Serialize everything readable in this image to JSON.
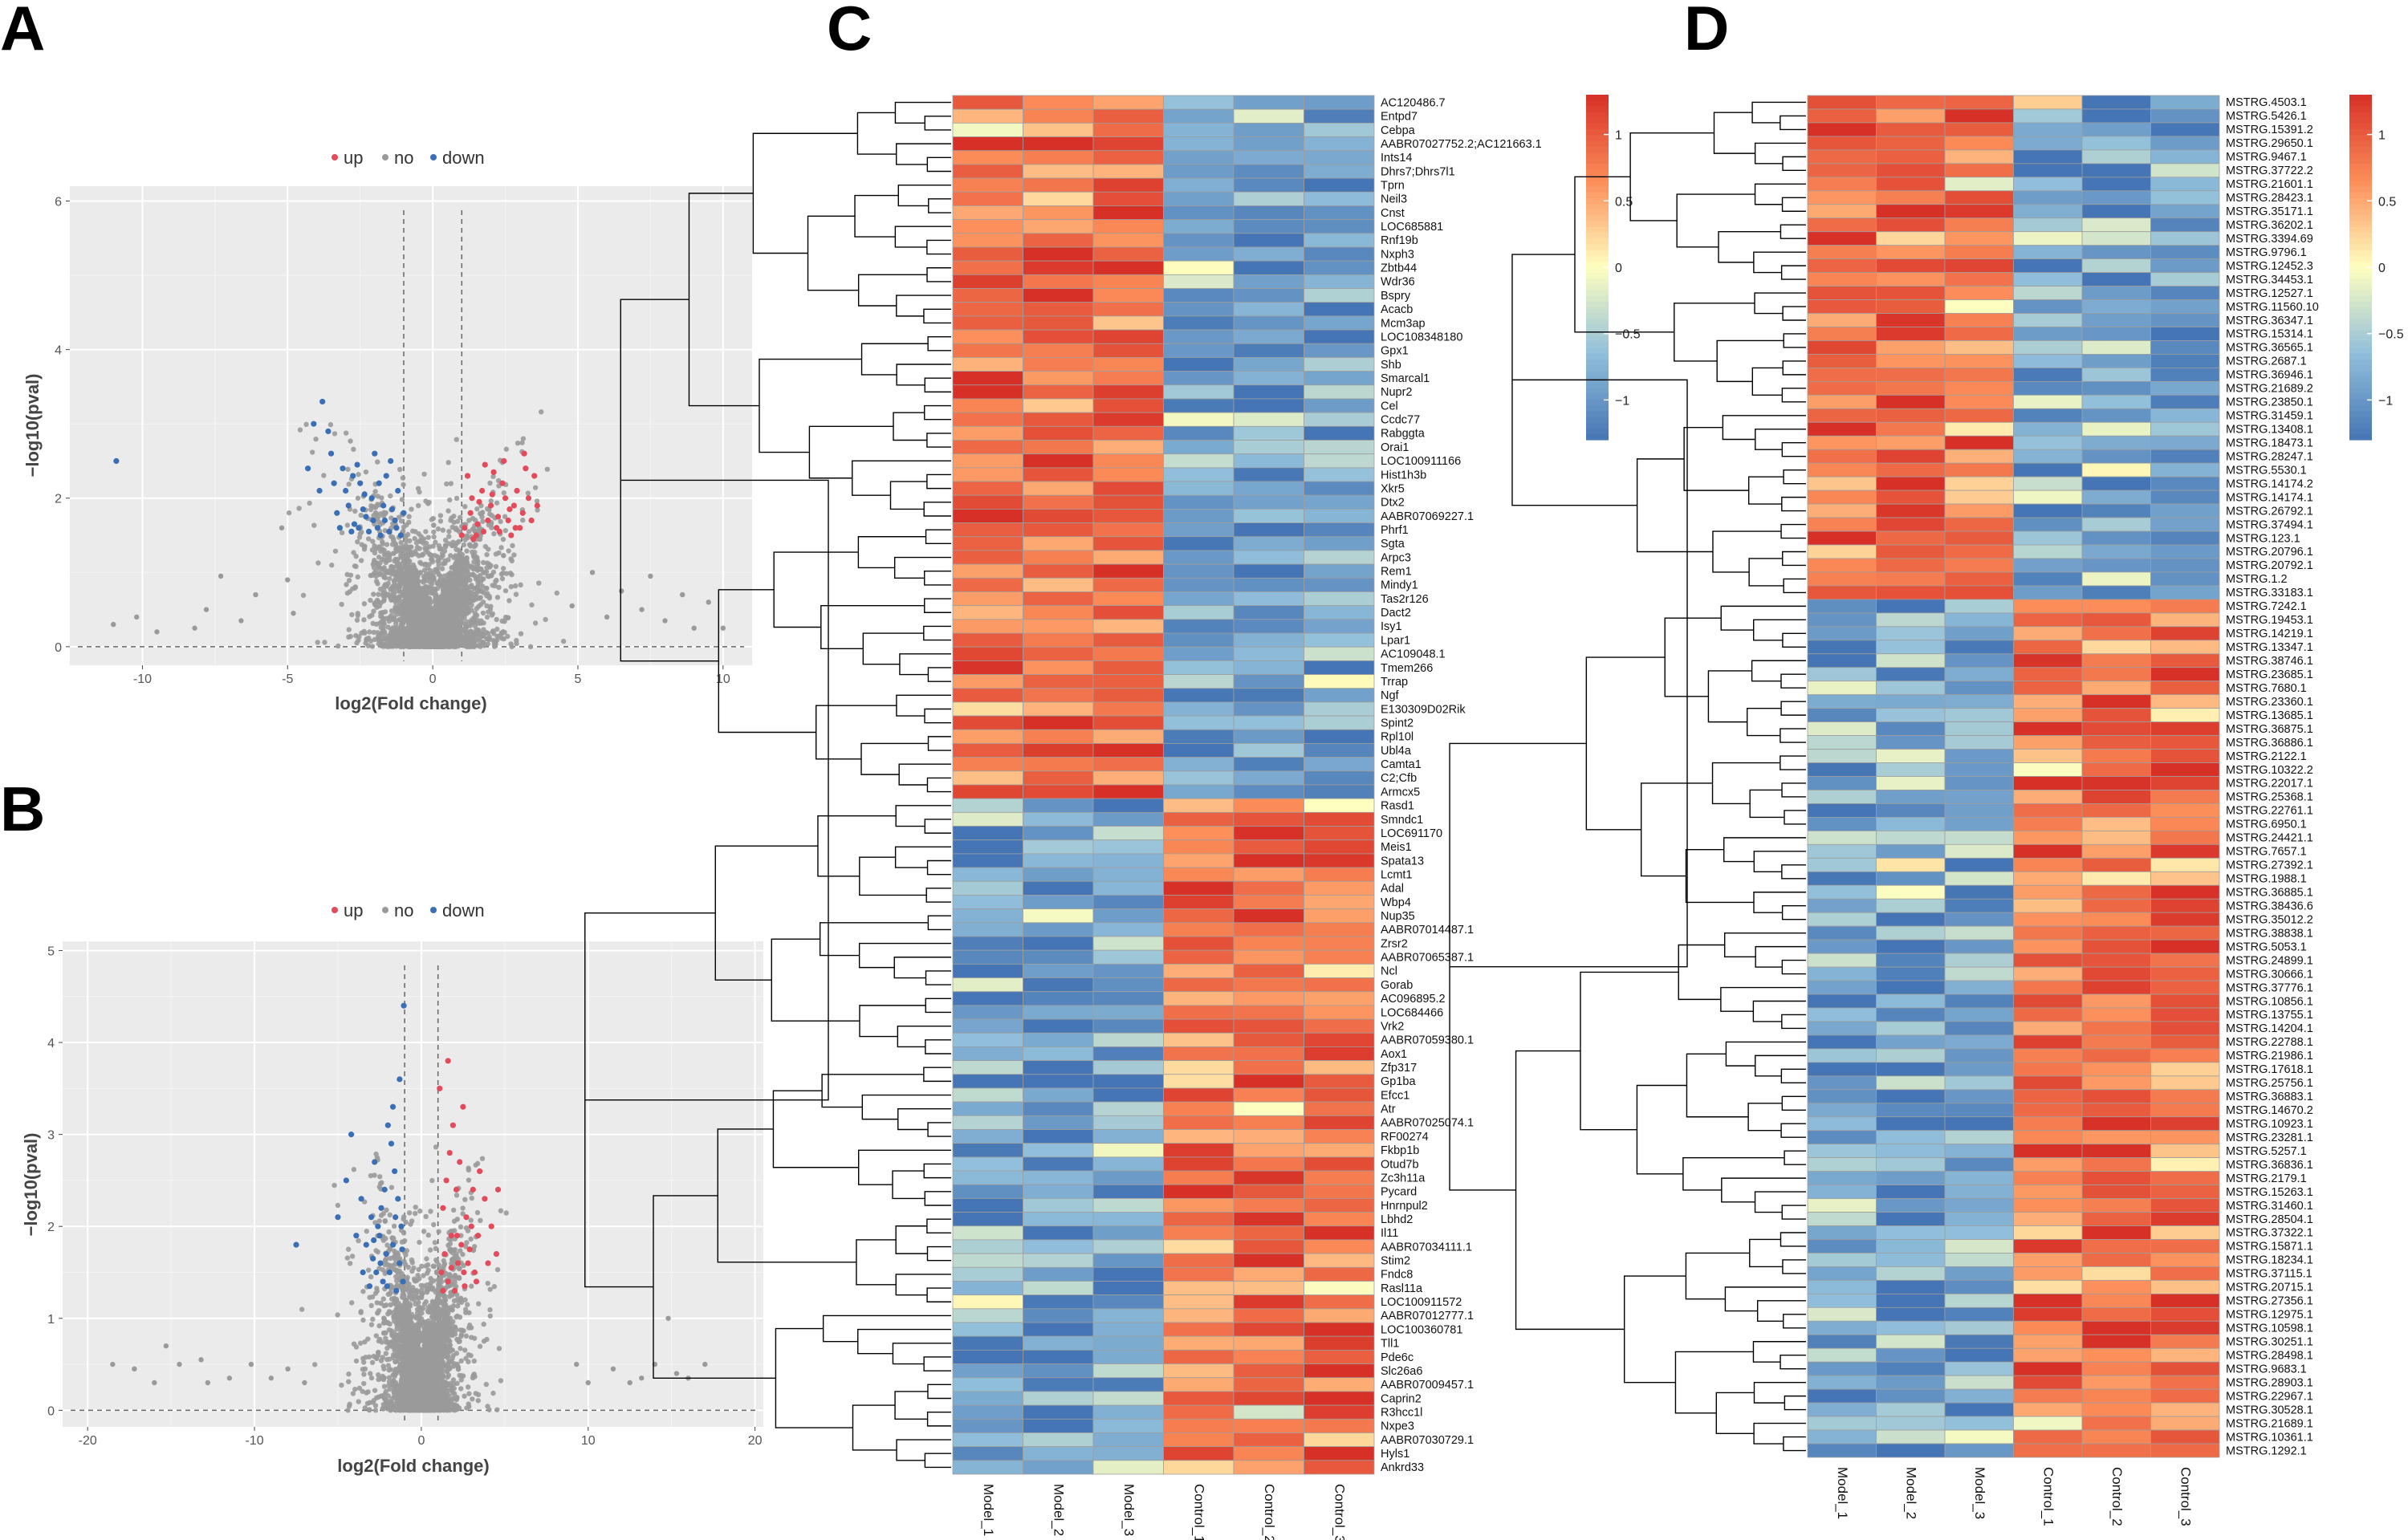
{
  "panels": {
    "A": {
      "letter": "A",
      "legend": [
        "up",
        "no",
        "down"
      ],
      "x_label": "log2(Fold change)",
      "y_label": "−log10(pval)",
      "x_ticks": [
        "-10",
        "-5",
        "0",
        "5",
        "10"
      ],
      "y_ticks": [
        "0",
        "2",
        "4",
        "6"
      ]
    },
    "B": {
      "letter": "B",
      "legend": [
        "up",
        "no",
        "down"
      ],
      "x_label": "log2(Fold change)",
      "y_label": "−log10(pval)",
      "x_ticks": [
        "-20",
        "-10",
        "0",
        "10",
        "20"
      ],
      "y_ticks": [
        "0",
        "1",
        "2",
        "3",
        "4",
        "5"
      ]
    },
    "C": {
      "letter": "C"
    },
    "D": {
      "letter": "D"
    }
  },
  "colors": {
    "up": "#e34a5a",
    "down": "#3a6fb5",
    "no": "#9a9a9a",
    "panel_bg": "#ebebeb",
    "grid": "#ffffff"
  },
  "chart_data": [
    {
      "id": "A",
      "type": "scatter",
      "title": "",
      "xlabel": "log2(Fold change)",
      "ylabel": "−log10(pval)",
      "xlim": [
        -12.5,
        11
      ],
      "ylim": [
        -0.25,
        6.2
      ],
      "thresholds": {
        "fc": [
          -1,
          1
        ],
        "p": 0
      },
      "legend": [
        "up",
        "no",
        "down"
      ],
      "up": [
        [
          1.1,
          1.6
        ],
        [
          1.3,
          1.8
        ],
        [
          1.5,
          1.5
        ],
        [
          1.7,
          2.1
        ],
        [
          1.9,
          1.7
        ],
        [
          2.0,
          1.9
        ],
        [
          2.2,
          1.6
        ],
        [
          2.4,
          2.2
        ],
        [
          2.6,
          1.7
        ],
        [
          2.8,
          1.9
        ],
        [
          3.0,
          1.6
        ],
        [
          3.2,
          2.4
        ],
        [
          1.2,
          2.3
        ],
        [
          1.4,
          1.45
        ],
        [
          1.6,
          1.95
        ],
        [
          1.8,
          2.45
        ],
        [
          2.1,
          2.35
        ],
        [
          2.3,
          1.55
        ],
        [
          2.5,
          2.0
        ],
        [
          2.7,
          1.5
        ],
        [
          2.9,
          2.1
        ],
        [
          3.1,
          1.8
        ],
        [
          3.4,
          1.7
        ],
        [
          3.6,
          1.9
        ],
        [
          1.0,
          1.5
        ],
        [
          1.35,
          2.0
        ],
        [
          1.55,
          1.65
        ],
        [
          1.75,
          1.55
        ],
        [
          2.05,
          2.05
        ],
        [
          2.25,
          1.75
        ],
        [
          2.45,
          2.5
        ],
        [
          2.65,
          1.85
        ],
        [
          3.3,
          2.0
        ],
        [
          3.5,
          2.3
        ],
        [
          3.15,
          2.6
        ],
        [
          2.85,
          1.6
        ]
      ],
      "down": [
        [
          -1.1,
          1.5
        ],
        [
          -1.3,
          1.7
        ],
        [
          -1.5,
          1.55
        ],
        [
          -1.7,
          1.9
        ],
        [
          -1.9,
          1.6
        ],
        [
          -2.1,
          2.0
        ],
        [
          -2.3,
          1.75
        ],
        [
          -2.5,
          2.2
        ],
        [
          -2.7,
          1.65
        ],
        [
          -2.9,
          1.9
        ],
        [
          -3.1,
          2.4
        ],
        [
          -3.3,
          1.8
        ],
        [
          -3.5,
          2.6
        ],
        [
          -3.8,
          3.3
        ],
        [
          -1.2,
          2.1
        ],
        [
          -1.4,
          1.85
        ],
        [
          -1.6,
          2.3
        ],
        [
          -1.8,
          1.5
        ],
        [
          -2.0,
          2.6
        ],
        [
          -2.2,
          1.55
        ],
        [
          -2.4,
          1.85
        ],
        [
          -2.6,
          2.45
        ],
        [
          -2.8,
          1.55
        ],
        [
          -3.0,
          2.1
        ],
        [
          -3.2,
          1.6
        ],
        [
          -3.4,
          2.2
        ],
        [
          -3.6,
          2.9
        ],
        [
          -1.0,
          1.8
        ],
        [
          -1.25,
          1.6
        ],
        [
          -1.45,
          2.5
        ],
        [
          -1.65,
          1.7
        ],
        [
          -1.85,
          2.2
        ],
        [
          -2.05,
          1.7
        ],
        [
          -2.35,
          2.05
        ],
        [
          -2.55,
          1.6
        ],
        [
          -2.75,
          2.3
        ],
        [
          -4.3,
          2.4
        ],
        [
          -4.1,
          3.0
        ],
        [
          -3.9,
          2.1
        ],
        [
          -10.9,
          2.5
        ]
      ],
      "no_outliers": [
        [
          -7.3,
          0.95
        ],
        [
          -8.2,
          0.25
        ],
        [
          -6.1,
          0.7
        ],
        [
          -5.2,
          1.6
        ],
        [
          -5.0,
          0.9
        ],
        [
          -6.6,
          0.35
        ],
        [
          -7.8,
          0.5
        ],
        [
          -9.5,
          0.2
        ],
        [
          -10.2,
          0.4
        ],
        [
          -11.0,
          0.3
        ],
        [
          5.5,
          1.0
        ],
        [
          6.5,
          0.75
        ],
        [
          7.2,
          0.5
        ],
        [
          8.0,
          0.35
        ],
        [
          9.0,
          0.25
        ],
        [
          9.5,
          0.6
        ],
        [
          10.0,
          0.25
        ],
        [
          7.5,
          0.95
        ],
        [
          6.0,
          0.4
        ],
        [
          8.6,
          0.7
        ],
        [
          -4.8,
          0.45
        ],
        [
          4.8,
          0.55
        ]
      ]
    },
    {
      "id": "B",
      "type": "scatter",
      "title": "",
      "xlabel": "log2(Fold change)",
      "ylabel": "−log10(pval)",
      "xlim": [
        -21.5,
        20.5
      ],
      "ylim": [
        -0.18,
        5.1
      ],
      "thresholds": {
        "fc": [
          -1,
          1
        ],
        "p": 0
      },
      "legend": [
        "up",
        "no",
        "down"
      ],
      "up": [
        [
          1.2,
          1.5
        ],
        [
          1.4,
          1.7
        ],
        [
          1.6,
          1.4
        ],
        [
          1.8,
          1.9
        ],
        [
          2.0,
          1.3
        ],
        [
          2.2,
          1.6
        ],
        [
          2.4,
          1.8
        ],
        [
          2.6,
          1.35
        ],
        [
          2.8,
          1.6
        ],
        [
          3.0,
          2.0
        ],
        [
          3.2,
          1.5
        ],
        [
          3.4,
          1.9
        ],
        [
          1.3,
          2.2
        ],
        [
          1.5,
          2.5
        ],
        [
          1.7,
          2.8
        ],
        [
          1.9,
          3.1
        ],
        [
          2.1,
          2.4
        ],
        [
          2.3,
          2.7
        ],
        [
          2.5,
          3.3
        ],
        [
          2.7,
          2.1
        ],
        [
          3.1,
          2.4
        ],
        [
          3.5,
          2.6
        ],
        [
          3.8,
          2.3
        ],
        [
          4.2,
          2.0
        ],
        [
          4.5,
          1.7
        ],
        [
          4.6,
          2.4
        ],
        [
          1.1,
          3.5
        ],
        [
          1.6,
          3.8
        ],
        [
          1.3,
          1.3
        ],
        [
          1.8,
          1.55
        ],
        [
          2.15,
          1.9
        ],
        [
          2.55,
          1.5
        ],
        [
          2.9,
          1.75
        ],
        [
          3.3,
          1.4
        ],
        [
          4.0,
          1.6
        ]
      ],
      "down": [
        [
          -1.1,
          1.4
        ],
        [
          -1.3,
          1.6
        ],
        [
          -1.5,
          1.3
        ],
        [
          -1.7,
          1.8
        ],
        [
          -1.9,
          1.5
        ],
        [
          -2.1,
          1.7
        ],
        [
          -2.3,
          1.4
        ],
        [
          -2.5,
          1.9
        ],
        [
          -2.7,
          1.5
        ],
        [
          -2.9,
          1.65
        ],
        [
          -3.1,
          1.35
        ],
        [
          -1.2,
          2.0
        ],
        [
          -1.4,
          2.3
        ],
        [
          -1.6,
          2.6
        ],
        [
          -1.8,
          2.9
        ],
        [
          -2.0,
          3.1
        ],
        [
          -2.2,
          2.4
        ],
        [
          -2.4,
          2.2
        ],
        [
          -2.6,
          2.0
        ],
        [
          -2.8,
          2.7
        ],
        [
          -3.0,
          2.1
        ],
        [
          -3.3,
          1.8
        ],
        [
          -3.6,
          2.3
        ],
        [
          -3.9,
          1.9
        ],
        [
          -4.2,
          3.0
        ],
        [
          -4.5,
          2.5
        ],
        [
          -5.0,
          2.1
        ],
        [
          -7.5,
          1.8
        ],
        [
          -1.05,
          4.4
        ],
        [
          -1.3,
          3.6
        ],
        [
          -1.7,
          3.3
        ],
        [
          -1.15,
          1.75
        ],
        [
          -1.55,
          2.1
        ],
        [
          -2.05,
          1.35
        ],
        [
          -2.45,
          1.6
        ],
        [
          -2.85,
          1.85
        ],
        [
          -3.5,
          1.5
        ]
      ],
      "no_outliers": [
        [
          -18.5,
          0.5
        ],
        [
          -17.2,
          0.45
        ],
        [
          -15.3,
          0.7
        ],
        [
          -13.2,
          0.55
        ],
        [
          -12.8,
          0.3
        ],
        [
          -11.5,
          0.35
        ],
        [
          -10.2,
          0.5
        ],
        [
          -9.0,
          0.35
        ],
        [
          -8.0,
          0.45
        ],
        [
          -7.0,
          0.3
        ],
        [
          9.3,
          0.5
        ],
        [
          10.0,
          0.3
        ],
        [
          11.5,
          0.45
        ],
        [
          13.2,
          0.35
        ],
        [
          14.0,
          0.5
        ],
        [
          15.3,
          0.4
        ],
        [
          16.0,
          0.35
        ],
        [
          17.0,
          0.5
        ],
        [
          14.8,
          1.0
        ],
        [
          -14.5,
          0.5
        ],
        [
          -16.0,
          0.3
        ],
        [
          12.5,
          0.3
        ]
      ]
    },
    {
      "id": "C",
      "type": "heatmap",
      "title": "",
      "samples": [
        "Model_1",
        "Model_2",
        "Model_3",
        "Control_1",
        "Control_2",
        "Control_3"
      ],
      "split_index": 51,
      "genes": [
        "AC120486.7",
        "Entpd7",
        "Cebpa",
        "AABR07027752.2;AC121663.1",
        "Ints14",
        "Dhrs7;Dhrs7l1",
        "Tprn",
        "Neil3",
        "Cnst",
        "LOC685881",
        "Rnf19b",
        "Nxph3",
        "Zbtb44",
        "Wdr36",
        "Bspry",
        "Acacb",
        "Mcm3ap",
        "LOC108348180",
        "Gpx1",
        "Shb",
        "Smarcal1",
        "Nupr2",
        "Cel",
        "Ccdc77",
        "Rabggta",
        "Orai1",
        "LOC100911166",
        "Hist1h3b",
        "Xkr5",
        "Dtx2",
        "AABR07069227.1",
        "Phrf1",
        "Sgta",
        "Arpc3",
        "Rem1",
        "Mindy1",
        "Tas2r126",
        "Dact2",
        "Isy1",
        "Lpar1",
        "AC109048.1",
        "Tmem266",
        "Trrap",
        "Ngf",
        "E130309D02Rik",
        "Spint2",
        "Rpl10l",
        "Ubl4a",
        "Camta1",
        "C2;Cfb",
        "Armcx5",
        "Rasd1",
        "Smndc1",
        "LOC691170",
        "Meis1",
        "Spata13",
        "Lcmt1",
        "Adal",
        "Wbp4",
        "Nup35",
        "AABR07014487.1",
        "Zrsr2",
        "AABR07065387.1",
        "Ncl",
        "Gorab",
        "AC096895.2",
        "LOC684466",
        "Vrk2",
        "AABR07059380.1",
        "Aox1",
        "Zfp317",
        "Gp1ba",
        "Efcc1",
        "Atr",
        "AABR07025074.1",
        "RF00274",
        "Fkbp1b",
        "Otud7b",
        "Zc3h11a",
        "Pycard",
        "Hnrnpul2",
        "Lbhd2",
        "Il11",
        "AABR07034111.1",
        "Stim2",
        "Fndc8",
        "Rasl11a",
        "LOC100911572",
        "AABR07012777.1",
        "LOC100360781",
        "Tll1",
        "Pde6c",
        "Slc26a6",
        "AABR07009457.1",
        "Caprin2",
        "R3hcc1l",
        "Nxpe3",
        "AABR07030729.1",
        "Hyls1",
        "Ankrd33"
      ],
      "colorbar": {
        "ticks": [
          "1",
          "0.5",
          "0",
          "−0.5",
          "−1"
        ],
        "values": [
          1,
          0.5,
          0,
          -0.5,
          -1
        ],
        "range": [
          -1.3,
          1.3
        ]
      }
    },
    {
      "id": "D",
      "type": "heatmap",
      "title": "",
      "samples": [
        "Model_1",
        "Model_2",
        "Model_3",
        "Control_1",
        "Control_2",
        "Control_3"
      ],
      "split_index": 37,
      "genes": [
        "MSTRG.4503.1",
        "MSTRG.5426.1",
        "MSTRG.15391.2",
        "MSTRG.29650.1",
        "MSTRG.9467.1",
        "MSTRG.37722.2",
        "MSTRG.21601.1",
        "MSTRG.28423.1",
        "MSTRG.35171.1",
        "MSTRG.36202.1",
        "MSTRG.3394.69",
        "MSTRG.9796.1",
        "MSTRG.12452.3",
        "MSTRG.34453.1",
        "MSTRG.12527.1",
        "MSTRG.11560.10",
        "MSTRG.36347.1",
        "MSTRG.15314.1",
        "MSTRG.36565.1",
        "MSTRG.2687.1",
        "MSTRG.36946.1",
        "MSTRG.21689.2",
        "MSTRG.23850.1",
        "MSTRG.31459.1",
        "MSTRG.13408.1",
        "MSTRG.18473.1",
        "MSTRG.28247.1",
        "MSTRG.5530.1",
        "MSTRG.14174.2",
        "MSTRG.14174.1",
        "MSTRG.26792.1",
        "MSTRG.37494.1",
        "MSTRG.123.1",
        "MSTRG.20796.1",
        "MSTRG.20792.1",
        "MSTRG.1.2",
        "MSTRG.33183.1",
        "MSTRG.7242.1",
        "MSTRG.19453.1",
        "MSTRG.14219.1",
        "MSTRG.13347.1",
        "MSTRG.38746.1",
        "MSTRG.23685.1",
        "MSTRG.7680.1",
        "MSTRG.23360.1",
        "MSTRG.13685.1",
        "MSTRG.36875.1",
        "MSTRG.36886.1",
        "MSTRG.2122.1",
        "MSTRG.10322.2",
        "MSTRG.22017.1",
        "MSTRG.25368.1",
        "MSTRG.22761.1",
        "MSTRG.6950.1",
        "MSTRG.24421.1",
        "MSTRG.7657.1",
        "MSTRG.27392.1",
        "MSTRG.1988.1",
        "MSTRG.36885.1",
        "MSTRG.38436.6",
        "MSTRG.35012.2",
        "MSTRG.38838.1",
        "MSTRG.5053.1",
        "MSTRG.24899.1",
        "MSTRG.30666.1",
        "MSTRG.37776.1",
        "MSTRG.10856.1",
        "MSTRG.13755.1",
        "MSTRG.14204.1",
        "MSTRG.22788.1",
        "MSTRG.21986.1",
        "MSTRG.17618.1",
        "MSTRG.25756.1",
        "MSTRG.36883.1",
        "MSTRG.14670.2",
        "MSTRG.10923.1",
        "MSTRG.23281.1",
        "MSTRG.5257.1",
        "MSTRG.36836.1",
        "MSTRG.2179.1",
        "MSTRG.15263.1",
        "MSTRG.31460.1",
        "MSTRG.28504.1",
        "MSTRG.37322.1",
        "MSTRG.15871.1",
        "MSTRG.18234.1",
        "MSTRG.37115.1",
        "MSTRG.20715.1",
        "MSTRG.27356.1",
        "MSTRG.12975.1",
        "MSTRG.10598.1",
        "MSTRG.30251.1",
        "MSTRG.28498.1",
        "MSTRG.9683.1",
        "MSTRG.28903.1",
        "MSTRG.22967.1",
        "MSTRG.30528.1",
        "MSTRG.21689.1",
        "MSTRG.10361.1",
        "MSTRG.1292.1"
      ],
      "colorbar": {
        "ticks": [
          "1",
          "0.5",
          "0",
          "−0.5",
          "−1"
        ],
        "values": [
          1,
          0.5,
          0,
          -0.5,
          -1
        ],
        "range": [
          -1.3,
          1.3
        ]
      }
    }
  ]
}
